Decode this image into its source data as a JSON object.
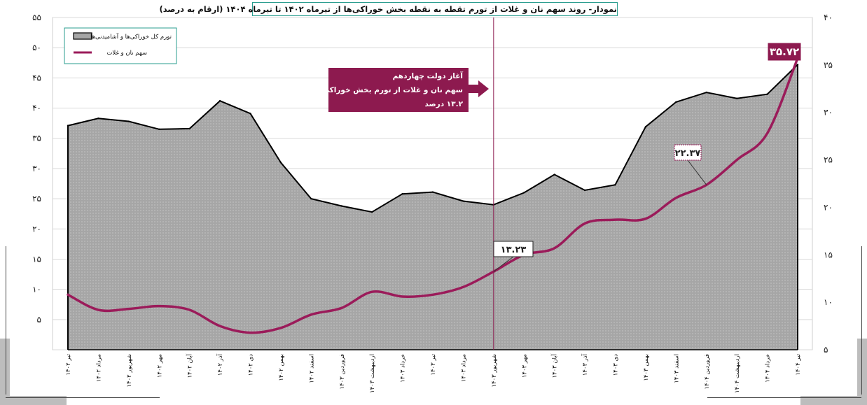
{
  "chart_data": {
    "type": "area+line",
    "title": "نمودار- روند سهم نان و غلات از تورم تقطه به نقطه بخش خوراکی‌ها از تیرماه ۱۴۰۲ تا تیرماه ۱۴۰۴ (ارقام به درصد)",
    "categories": [
      "تیر ۱۴۰۲",
      "مرداد ۱۴۰۲",
      "شهریور ۱۴۰۲",
      "مهر ۱۴۰۲",
      "آبان ۱۴۰۲",
      "آذر ۱۴۰۲",
      "دی ۱۴۰۲",
      "بهمن ۱۴۰۲",
      "اسفند ۱۴۰۲",
      "فروردین ۱۴۰۳",
      "اردیبهشت ۱۴۰۳",
      "خرداد ۱۴۰۳",
      "تیر ۱۴۰۳",
      "مرداد ۱۴۰۳",
      "شهریور ۱۴۰۳",
      "مهر ۱۴۰۳",
      "آبان ۱۴۰۳",
      "آذر ۱۴۰۳",
      "دی ۱۴۰۳",
      "بهمن ۱۴۰۳",
      "اسفند ۱۴۰۳",
      "فروردین ۱۴۰۴",
      "اردیبهشت ۱۴۰۴",
      "خرداد ۱۴۰۴",
      "تیر ۱۴۰۴"
    ],
    "left_axis": {
      "ylim": [
        0,
        55
      ],
      "ticks": [
        0,
        5,
        10,
        15,
        20,
        25,
        30,
        35,
        40,
        45,
        50,
        55
      ],
      "tick_labels": [
        "",
        "۵",
        "۱۰",
        "۱۵",
        "۲۰",
        "۲۵",
        "۳۰",
        "۳۵",
        "۴۰",
        "۴۵",
        "۵۰",
        "۵۵"
      ]
    },
    "right_axis": {
      "ylim": [
        5,
        40
      ],
      "ticks": [
        5,
        10,
        15,
        20,
        25,
        30,
        35,
        40
      ],
      "tick_labels": [
        "۵",
        "۱۰",
        "۱۵",
        "۲۰",
        "۲۵",
        "۳۰",
        "۳۵",
        "۴۰"
      ]
    },
    "series": [
      {
        "name": "تورم کل خوراکی‌ها و آشامیدنی‌ها",
        "kind": "area",
        "axis": "left",
        "fill": "#a6a6a6",
        "stroke": "#000000",
        "values": [
          37.1,
          38.3,
          37.8,
          36.5,
          36.6,
          41.2,
          39.1,
          31.0,
          25.0,
          23.8,
          22.8,
          25.8,
          26.1,
          24.6,
          24.0,
          26.0,
          29.0,
          26.4,
          27.3,
          36.9,
          41.0,
          42.6,
          41.6,
          42.3,
          47.2
        ]
      },
      {
        "name": "سهم نان و غلات",
        "kind": "line",
        "axis": "right",
        "color": "#9b1b5a",
        "values": [
          10.8,
          9.2,
          9.3,
          9.6,
          9.2,
          7.5,
          6.8,
          7.3,
          8.7,
          9.4,
          11.1,
          10.6,
          10.8,
          11.6,
          13.23,
          15.0,
          15.7,
          18.3,
          18.7,
          18.8,
          21.0,
          22.37,
          25.0,
          27.8,
          35.72
        ]
      }
    ],
    "value_labels": [
      {
        "text": "۱۳.۲۳",
        "series": 1,
        "index": 14
      },
      {
        "text": "۲۲.۳۷",
        "series": 1,
        "index": 21
      },
      {
        "text": "۳۵.۷۲",
        "series": 1,
        "index": 24
      }
    ],
    "annotation": {
      "lines": [
        "آغاز دولت چهاردهم",
        "سهم نان و غلات از تورم بخش خوراکی‌ها:",
        "۱۳.۲ درصد"
      ],
      "marker_index": 14,
      "color": "#8d1a4f"
    },
    "legend": {
      "position": "top-left"
    },
    "grid": {
      "horizontal": true,
      "vertical": false
    }
  }
}
